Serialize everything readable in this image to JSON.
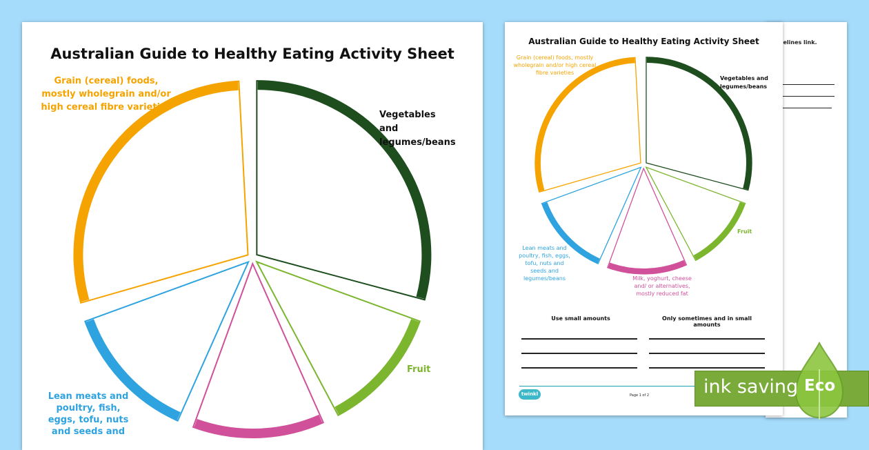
{
  "title": "Australian Guide to Healthy Eating Activity Sheet",
  "segments": [
    {
      "key": "vegetables",
      "label": "Vegetables and legumes/beans",
      "color": "#1e4d1e"
    },
    {
      "key": "fruit",
      "label": "Fruit",
      "color": "#7cb52e"
    },
    {
      "key": "dairy",
      "label": "Milk, yoghurt, cheese and/ or alternatives, mostly reduced fat",
      "color": "#d0509a"
    },
    {
      "key": "meats",
      "label": "Lean meats and poultry, fish, eggs, tofu, nuts and seeds and legumes/beans",
      "color": "#2ea3df"
    },
    {
      "key": "grain",
      "label": "Grain (cereal) foods, mostly wholegrain and/or high cereal fibre varieties",
      "color": "#f5a300"
    }
  ],
  "left_sheet": {
    "grain_label": "Grain (cereal) foods, mostly wholegrain and/or high cereal fibre varieties",
    "veg_label": "Vegetables and legumes/beans",
    "fruit_label": "Fruit",
    "meats_label": "Lean meats and poultry, fish, eggs, tofu, nuts and seeds and"
  },
  "right_sheet": {
    "use_small": "Use small amounts",
    "only_sometimes": "Only sometimes and in small amounts",
    "logo": "twinkl",
    "page": "Page 1 of 2"
  },
  "back_sheet": {
    "text": "idelines link."
  },
  "badge": {
    "ink_saving": "ink saving",
    "eco": "Eco",
    "color": "#7aab3a"
  }
}
